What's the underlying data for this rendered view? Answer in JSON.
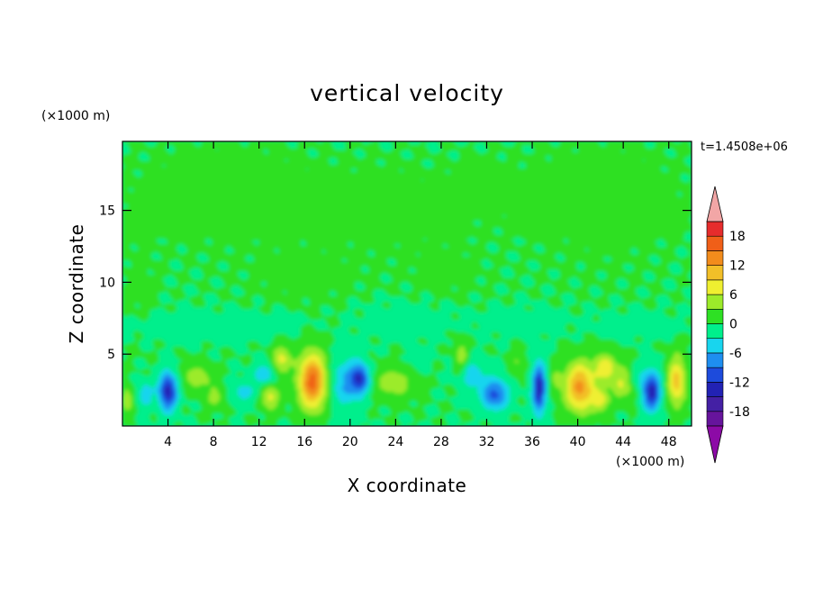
{
  "chart_data": {
    "type": "heatmap",
    "title": "vertical velocity",
    "xlabel": "X coordinate",
    "ylabel": "Z coordinate",
    "x_unit_label": "(×1000 m)",
    "y_unit_label": "(×1000 m)",
    "time_label": "t=1.4508e+06",
    "xlim": [
      0,
      50
    ],
    "ylim": [
      0,
      19.8
    ],
    "x_ticks": [
      4,
      8,
      12,
      16,
      20,
      24,
      28,
      32,
      36,
      40,
      44,
      48
    ],
    "x_tick_labels": [
      "4",
      "8",
      "12",
      "16",
      "20",
      "24",
      "28",
      "32",
      "36",
      "40",
      "44",
      "48"
    ],
    "y_ticks": [
      5,
      10,
      15
    ],
    "y_tick_labels": [
      "5",
      "10",
      "15"
    ],
    "colorbar": {
      "range": [
        -21,
        21
      ],
      "levels": [
        -18,
        -15,
        -12,
        -9,
        -6,
        -3,
        0,
        3,
        6,
        9,
        12,
        15,
        18
      ],
      "tick_values": [
        -18,
        -12,
        -6,
        0,
        6,
        12,
        18
      ],
      "tick_labels": [
        "-18",
        "-12",
        "-6",
        "0",
        "6",
        "12",
        "18"
      ],
      "colors": [
        "#66149c",
        "#4420a4",
        "#2222b4",
        "#1d4bdc",
        "#1e8ef0",
        "#18d5ee",
        "#00ef8c",
        "#2ee024",
        "#9ceb2a",
        "#efef30",
        "#f2bf28",
        "#f28c1c",
        "#f05f18",
        "#e62c2c"
      ],
      "under_color": "#8c0aa6",
      "over_color": "#f2a6a6"
    },
    "cells": [
      {
        "x": 4.0,
        "z": 2.4,
        "sx": 0.8,
        "sz": 1.3,
        "w": -14
      },
      {
        "x": 2.0,
        "z": 2.2,
        "sx": 0.7,
        "sz": 0.9,
        "w": -5
      },
      {
        "x": 0.4,
        "z": 1.8,
        "sx": 0.5,
        "sz": 0.9,
        "w": 6
      },
      {
        "x": 6.6,
        "z": 3.4,
        "sx": 1.3,
        "sz": 0.9,
        "w": 5
      },
      {
        "x": 8.2,
        "z": 2.0,
        "sx": 0.9,
        "sz": 0.8,
        "w": 4
      },
      {
        "x": 10.6,
        "z": 2.3,
        "sx": 1.2,
        "sz": 0.8,
        "w": -4
      },
      {
        "x": 12.5,
        "z": 3.6,
        "sx": 0.9,
        "sz": 0.7,
        "w": -6
      },
      {
        "x": 13.0,
        "z": 2.0,
        "sx": 0.8,
        "sz": 0.9,
        "w": 7
      },
      {
        "x": 14.0,
        "z": 4.6,
        "sx": 0.8,
        "sz": 1.0,
        "w": 7
      },
      {
        "x": 16.7,
        "z": 3.1,
        "sx": 1.2,
        "sz": 1.9,
        "w": 16
      },
      {
        "x": 19.6,
        "z": 3.0,
        "sx": 1.4,
        "sz": 1.8,
        "w": -6
      },
      {
        "x": 20.9,
        "z": 3.3,
        "sx": 0.8,
        "sz": 1.0,
        "w": -11
      },
      {
        "x": 23.8,
        "z": 3.0,
        "sx": 1.7,
        "sz": 1.1,
        "w": 5
      },
      {
        "x": 26.2,
        "z": 4.6,
        "sx": 0.8,
        "sz": 0.7,
        "w": -2
      },
      {
        "x": 29.8,
        "z": 4.8,
        "sx": 0.6,
        "sz": 1.2,
        "w": 5
      },
      {
        "x": 30.6,
        "z": 3.6,
        "sx": 1.1,
        "sz": 1.0,
        "w": -5
      },
      {
        "x": 32.7,
        "z": 2.2,
        "sx": 1.2,
        "sz": 1.1,
        "w": -10
      },
      {
        "x": 34.7,
        "z": 4.4,
        "sx": 0.7,
        "sz": 0.8,
        "w": 3
      },
      {
        "x": 36.6,
        "z": 2.6,
        "sx": 0.6,
        "sz": 1.7,
        "w": -14
      },
      {
        "x": 38.1,
        "z": 3.2,
        "sx": 0.6,
        "sz": 1.1,
        "w": 3
      },
      {
        "x": 40.2,
        "z": 2.7,
        "sx": 1.3,
        "sz": 1.7,
        "w": 13
      },
      {
        "x": 42.4,
        "z": 4.1,
        "sx": 0.9,
        "sz": 0.9,
        "w": 8
      },
      {
        "x": 42.0,
        "z": 1.8,
        "sx": 0.7,
        "sz": 0.8,
        "w": 7
      },
      {
        "x": 43.9,
        "z": 3.0,
        "sx": 1.1,
        "sz": 1.2,
        "w": 6
      },
      {
        "x": 46.5,
        "z": 2.4,
        "sx": 0.8,
        "sz": 1.3,
        "w": -14
      },
      {
        "x": 48.7,
        "z": 3.1,
        "sx": 0.8,
        "sz": 1.7,
        "w": 10
      },
      {
        "x": 45.2,
        "z": 3.4,
        "sx": 0.8,
        "sz": 0.8,
        "w": -3
      },
      {
        "x": 5.0,
        "z": 6.9,
        "sx": 5.0,
        "sz": 0.9,
        "w": -1.5
      },
      {
        "x": 12.0,
        "z": 7.0,
        "sx": 3.5,
        "sz": 0.8,
        "w": -1.3
      },
      {
        "x": 25.0,
        "z": 7.3,
        "sx": 4.0,
        "sz": 1.2,
        "w": -1.1
      },
      {
        "x": 35.0,
        "z": 7.2,
        "sx": 3.5,
        "sz": 0.9,
        "w": -1.2
      },
      {
        "x": 45.0,
        "z": 7.0,
        "sx": 3.5,
        "sz": 0.8,
        "w": -1.3
      },
      {
        "x": 9.5,
        "z": 15.5,
        "sx": 7.0,
        "sz": 3.2,
        "w": 0.8
      },
      {
        "x": 16.0,
        "z": 10.4,
        "sx": 4.5,
        "sz": 2.0,
        "w": 0.8
      },
      {
        "x": 23.0,
        "z": 14.5,
        "sx": 5.0,
        "sz": 3.0,
        "w": 0.65
      },
      {
        "x": 28.5,
        "z": 10.8,
        "sx": 3.2,
        "sz": 2.0,
        "w": 0.7
      },
      {
        "x": 31.5,
        "z": 16.6,
        "sx": 2.6,
        "sz": 1.6,
        "w": 0.7
      },
      {
        "x": 42.0,
        "z": 14.8,
        "sx": 6.0,
        "sz": 3.8,
        "w": 0.8
      },
      {
        "x": 1.5,
        "z": 9.5,
        "sx": 1.6,
        "sz": 4.0,
        "w": 0.6
      }
    ]
  }
}
